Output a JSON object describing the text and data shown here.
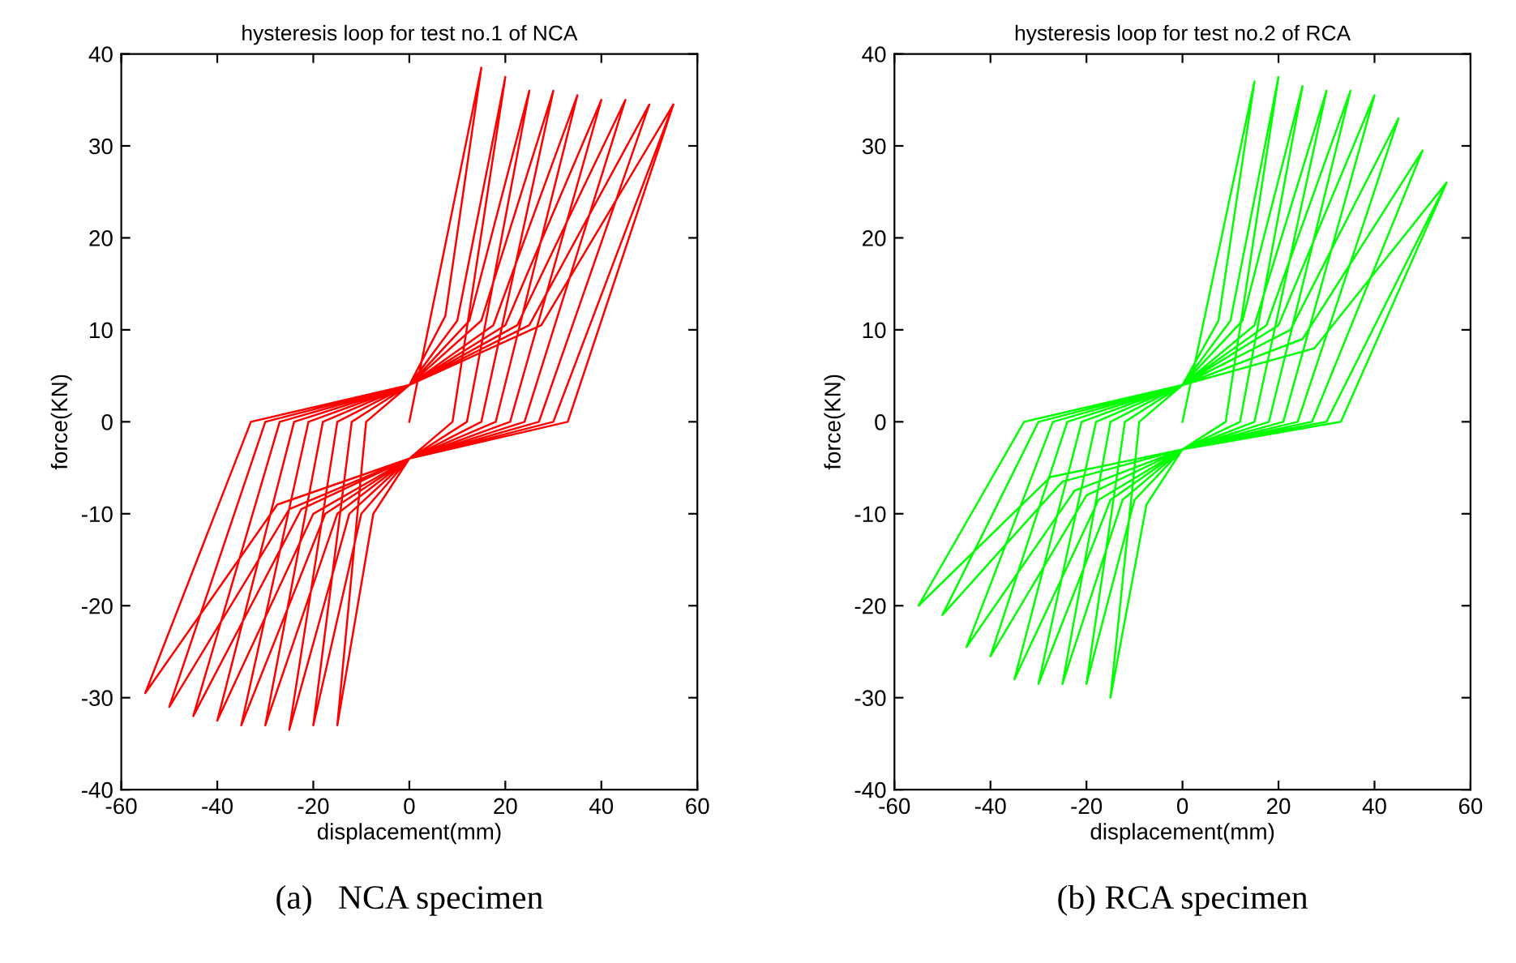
{
  "chart_data": [
    {
      "type": "line",
      "title": "hysteresis loop for test no.1 of NCA",
      "xlabel": "displacement(mm)",
      "ylabel": "force(KN)",
      "annotations": [
        "(a)   NCA specimen"
      ],
      "xlim": [
        -60,
        60
      ],
      "ylim": [
        -40,
        40
      ],
      "xticks": [
        -60,
        -40,
        -20,
        0,
        20,
        40,
        60
      ],
      "yticks": [
        -40,
        -30,
        -20,
        -10,
        0,
        10,
        20,
        30,
        40
      ],
      "grid": false,
      "marker": "none",
      "series": [
        {
          "color": "#ff0000",
          "x": [
            0,
            15,
            7.5,
            0,
            -9,
            -15,
            -7.5,
            0,
            9,
            20,
            10,
            0,
            -12,
            -20,
            -10,
            0,
            12,
            25,
            12.5,
            0,
            -15,
            -25,
            -12.5,
            0,
            15,
            30,
            15,
            0,
            -18,
            -30,
            -15,
            0,
            18,
            35,
            17.5,
            0,
            -21,
            -35,
            -17.5,
            0,
            21,
            40,
            20,
            0,
            -24,
            -40,
            -20,
            0,
            24,
            45,
            22.5,
            0,
            -27,
            -45,
            -22.5,
            0,
            27,
            50,
            25,
            0,
            -30,
            -50,
            -25,
            0,
            30,
            55,
            27.5,
            0,
            -33,
            -55,
            -27.5,
            0,
            33,
            55
          ],
          "values": [
            0,
            38.5,
            11.5,
            4,
            0,
            -33,
            -10,
            -4,
            0,
            37.5,
            11,
            4,
            0,
            -33,
            -10,
            -4,
            0,
            36,
            11,
            4,
            0,
            -33.5,
            -10,
            -4,
            0,
            36,
            11,
            4,
            0,
            -33,
            -10,
            -4,
            0,
            35.5,
            10.5,
            4,
            0,
            -33,
            -10,
            -4,
            0,
            35,
            10.5,
            4,
            0,
            -32.5,
            -10,
            -4,
            0,
            35,
            10.5,
            4,
            0,
            -32,
            -9.5,
            -4,
            0,
            34.5,
            10.5,
            4,
            0,
            -31,
            -9.5,
            -4,
            0,
            34.5,
            10.5,
            4,
            0,
            -29.5,
            -9,
            -4,
            0,
            34.5
          ]
        }
      ]
    },
    {
      "type": "line",
      "title": "hysteresis loop for test no.2 of RCA",
      "xlabel": "displacement(mm)",
      "ylabel": "force(KN)",
      "annotations": [
        "(b) RCA specimen"
      ],
      "xlim": [
        -60,
        60
      ],
      "ylim": [
        -40,
        40
      ],
      "xticks": [
        -60,
        -40,
        -20,
        0,
        20,
        40,
        60
      ],
      "yticks": [
        -40,
        -30,
        -20,
        -10,
        0,
        10,
        20,
        30,
        40
      ],
      "grid": false,
      "marker": "none",
      "series": [
        {
          "color": "#00ff00",
          "x": [
            0,
            15,
            7.5,
            0,
            -9,
            -15,
            -7.5,
            0,
            9,
            20,
            10,
            0,
            -12,
            -20,
            -10,
            0,
            12,
            25,
            12.5,
            0,
            -15,
            -25,
            -12.5,
            0,
            15,
            30,
            15,
            0,
            -18,
            -30,
            -15,
            0,
            18,
            35,
            17.5,
            0,
            -21,
            -35,
            -17.5,
            0,
            21,
            40,
            20,
            0,
            -24,
            -40,
            -20,
            0,
            24,
            45,
            22.5,
            0,
            -27,
            -45,
            -22.5,
            0,
            27,
            50,
            25,
            0,
            -30,
            -50,
            -25,
            0,
            30,
            55,
            27.5,
            0,
            -33,
            -55,
            -27.5,
            0,
            33,
            55
          ],
          "values": [
            0,
            37,
            11,
            4,
            0,
            -30,
            -9,
            -3,
            0,
            37.5,
            11,
            4,
            0,
            -28.5,
            -8.5,
            -3,
            0,
            36.5,
            11,
            4,
            0,
            -28.5,
            -8.5,
            -3,
            0,
            36,
            10.5,
            4,
            0,
            -28.5,
            -8.5,
            -3,
            0,
            36,
            10.5,
            4,
            0,
            -28,
            -8.5,
            -3,
            0,
            35.5,
            10.5,
            4,
            0,
            -25.5,
            -8,
            -3,
            0,
            33,
            10,
            4,
            0,
            -24.5,
            -7.5,
            -3,
            0,
            29.5,
            9,
            4,
            0,
            -21,
            -6.5,
            -3,
            0,
            26,
            8,
            4,
            0,
            -20,
            -6,
            -3,
            0,
            26
          ]
        }
      ]
    }
  ]
}
